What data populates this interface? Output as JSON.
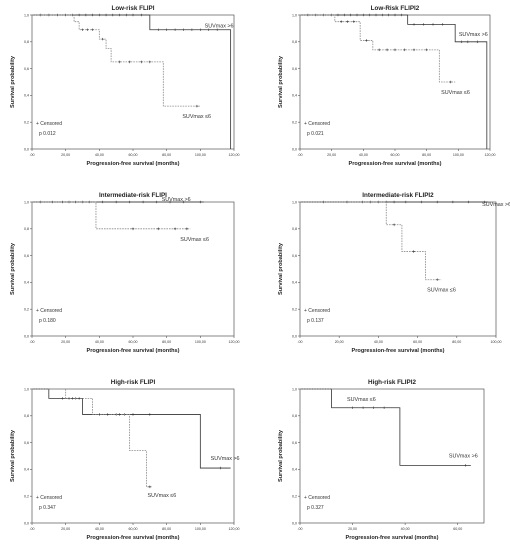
{
  "chart_data": [
    {
      "type": "line",
      "title": "Low-risk FLIPI",
      "xlabel": "Progression-free survival (months)",
      "ylabel": "Survival probability",
      "xlim": [
        0,
        120
      ],
      "ylim": [
        0,
        1
      ],
      "xticks": [
        ".00",
        "20,00",
        "40,00",
        "60,00",
        "80,00",
        "100,00",
        "120,00"
      ],
      "yticks": [
        "0,0",
        "0,2",
        "0,4",
        "0,6",
        "0,8",
        "1,0"
      ],
      "legend": "+ Censored",
      "p_value": "p 0.012",
      "series": [
        {
          "name": "SUVmax >6",
          "style": "solid",
          "steps": [
            [
              0,
              1
            ],
            [
              70,
              1
            ],
            [
              70,
              0.89
            ],
            [
              118,
              0.89
            ],
            [
              118,
              0
            ]
          ],
          "censor": [
            [
              5,
              1
            ],
            [
              10,
              1
            ],
            [
              15,
              1
            ],
            [
              20,
              1
            ],
            [
              24,
              1
            ],
            [
              28,
              1
            ],
            [
              32,
              1
            ],
            [
              36,
              1
            ],
            [
              40,
              1
            ],
            [
              44,
              1
            ],
            [
              48,
              1
            ],
            [
              52,
              1
            ],
            [
              56,
              1
            ],
            [
              60,
              1
            ],
            [
              65,
              1
            ],
            [
              75,
              0.89
            ],
            [
              80,
              0.89
            ],
            [
              85,
              0.89
            ],
            [
              90,
              0.89
            ],
            [
              95,
              0.89
            ],
            [
              100,
              0.89
            ],
            [
              105,
              0.89
            ],
            [
              110,
              0.89
            ]
          ]
        },
        {
          "name": "SUVmax ≤6",
          "style": "dashed",
          "steps": [
            [
              0,
              1
            ],
            [
              25,
              1
            ],
            [
              25,
              0.95
            ],
            [
              28,
              0.95
            ],
            [
              28,
              0.89
            ],
            [
              40,
              0.89
            ],
            [
              40,
              0.82
            ],
            [
              44,
              0.82
            ],
            [
              44,
              0.75
            ],
            [
              47,
              0.75
            ],
            [
              47,
              0.65
            ],
            [
              78,
              0.65
            ],
            [
              78,
              0.32
            ],
            [
              100,
              0.32
            ]
          ],
          "censor": [
            [
              30,
              0.89
            ],
            [
              33,
              0.89
            ],
            [
              36,
              0.89
            ],
            [
              42,
              0.82
            ],
            [
              52,
              0.65
            ],
            [
              58,
              0.65
            ],
            [
              65,
              0.65
            ],
            [
              70,
              0.65
            ],
            [
              98,
              0.32
            ]
          ]
        }
      ]
    },
    {
      "type": "line",
      "title": "Low-Risk FLIPI2",
      "xlabel": "Progression-free survival (months)",
      "ylabel": "Survival probability",
      "xlim": [
        0,
        120
      ],
      "ylim": [
        0,
        1
      ],
      "xticks": [
        ".00",
        "20,00",
        "40,00",
        "60,00",
        "80,00",
        "100,00",
        "120,00"
      ],
      "yticks": [
        "0,0",
        "0,2",
        "0,4",
        "0,6",
        "0,8",
        "1,0"
      ],
      "legend": "+ Censored",
      "p_value": "p 0.021",
      "series": [
        {
          "name": "SUVmax >6",
          "style": "solid",
          "steps": [
            [
              0,
              1
            ],
            [
              68,
              1
            ],
            [
              68,
              0.93
            ],
            [
              98,
              0.93
            ],
            [
              98,
              0.8
            ],
            [
              118,
              0.8
            ],
            [
              118,
              0
            ]
          ],
          "censor": [
            [
              5,
              1
            ],
            [
              10,
              1
            ],
            [
              15,
              1
            ],
            [
              20,
              1
            ],
            [
              24,
              1
            ],
            [
              28,
              1
            ],
            [
              32,
              1
            ],
            [
              36,
              1
            ],
            [
              40,
              1
            ],
            [
              44,
              1
            ],
            [
              48,
              1
            ],
            [
              52,
              1
            ],
            [
              56,
              1
            ],
            [
              60,
              1
            ],
            [
              64,
              1
            ],
            [
              72,
              0.93
            ],
            [
              78,
              0.93
            ],
            [
              84,
              0.93
            ],
            [
              90,
              0.93
            ],
            [
              102,
              0.8
            ],
            [
              106,
              0.8
            ],
            [
              112,
              0.8
            ]
          ]
        },
        {
          "name": "SUVmax ≤6",
          "style": "dashed",
          "steps": [
            [
              0,
              1
            ],
            [
              22,
              1
            ],
            [
              22,
              0.95
            ],
            [
              38,
              0.95
            ],
            [
              38,
              0.81
            ],
            [
              46,
              0.81
            ],
            [
              46,
              0.74
            ],
            [
              88,
              0.74
            ],
            [
              88,
              0.5
            ],
            [
              98,
              0.5
            ]
          ],
          "censor": [
            [
              26,
              0.95
            ],
            [
              30,
              0.95
            ],
            [
              34,
              0.95
            ],
            [
              42,
              0.81
            ],
            [
              50,
              0.74
            ],
            [
              55,
              0.74
            ],
            [
              60,
              0.74
            ],
            [
              66,
              0.74
            ],
            [
              72,
              0.74
            ],
            [
              80,
              0.74
            ],
            [
              95,
              0.5
            ]
          ]
        }
      ]
    },
    {
      "type": "line",
      "title": "Intermediate-risk FLIPI",
      "xlabel": "Progression-free survival (months)",
      "ylabel": "Survival probability",
      "xlim": [
        0,
        120
      ],
      "ylim": [
        0,
        1
      ],
      "xticks": [
        ".00",
        "20,00",
        "40,00",
        "60,00",
        "80,00",
        "100,00",
        "120,00"
      ],
      "yticks": [
        "0,0",
        "0,2",
        "0,4",
        "0,6",
        "0,8",
        "1,0"
      ],
      "legend": "+ Censored",
      "p_value": "p 0.180",
      "series": [
        {
          "name": "SUVmax >6",
          "style": "solid",
          "steps": [
            [
              0,
              1
            ],
            [
              102,
              1
            ]
          ],
          "censor": [
            [
              5,
              1
            ],
            [
              12,
              1
            ],
            [
              18,
              1
            ],
            [
              22,
              1
            ],
            [
              26,
              1
            ],
            [
              30,
              1
            ],
            [
              34,
              1
            ],
            [
              42,
              1
            ],
            [
              50,
              1
            ],
            [
              58,
              1
            ],
            [
              66,
              1
            ],
            [
              74,
              1
            ],
            [
              82,
              1
            ],
            [
              90,
              1
            ],
            [
              100,
              1
            ]
          ]
        },
        {
          "name": "SUVmax ≤6",
          "style": "dashed",
          "steps": [
            [
              0,
              1
            ],
            [
              38,
              1
            ],
            [
              38,
              0.8
            ],
            [
              94,
              0.8
            ]
          ],
          "censor": [
            [
              60,
              0.8
            ],
            [
              75,
              0.8
            ],
            [
              85,
              0.8
            ],
            [
              92,
              0.8
            ]
          ]
        }
      ]
    },
    {
      "type": "line",
      "title": "Intermediate-risk FLIPI2",
      "xlabel": "Progression-free survival (months)",
      "ylabel": "Survival probability",
      "xlim": [
        0,
        100
      ],
      "ylim": [
        0,
        1
      ],
      "xticks": [
        ".00",
        "20,00",
        "40,00",
        "60,00",
        "80,00",
        "100,00"
      ],
      "yticks": [
        "0,0",
        "0,2",
        "0,4",
        "0,6",
        "0,8",
        "1,0"
      ],
      "legend": "+ Censored",
      "p_value": "p 0.137",
      "series": [
        {
          "name": "SUVmax >6",
          "style": "solid",
          "steps": [
            [
              0,
              1
            ],
            [
              96,
              1
            ]
          ],
          "censor": [
            [
              12,
              1
            ],
            [
              24,
              1
            ],
            [
              32,
              1
            ],
            [
              36,
              1
            ],
            [
              40,
              1
            ],
            [
              44,
              1
            ],
            [
              48,
              1
            ],
            [
              54,
              1
            ],
            [
              62,
              1
            ],
            [
              70,
              1
            ],
            [
              78,
              1
            ],
            [
              86,
              1
            ],
            [
              94,
              1
            ]
          ]
        },
        {
          "name": "SUVmax ≤6",
          "style": "dashed",
          "steps": [
            [
              0,
              1
            ],
            [
              44,
              1
            ],
            [
              44,
              0.83
            ],
            [
              52,
              0.83
            ],
            [
              52,
              0.63
            ],
            [
              64,
              0.63
            ],
            [
              64,
              0.42
            ],
            [
              72,
              0.42
            ]
          ],
          "censor": [
            [
              48,
              0.83
            ],
            [
              58,
              0.63
            ],
            [
              70,
              0.42
            ]
          ]
        }
      ]
    },
    {
      "type": "line",
      "title": "High-risk FLIPI",
      "xlabel": "Progression-free survival (months)",
      "ylabel": "Survival probability",
      "xlim": [
        0,
        120
      ],
      "ylim": [
        0,
        1
      ],
      "xticks": [
        ".00",
        "20,00",
        "40,00",
        "60,00",
        "80,00",
        "100,00",
        "120,00"
      ],
      "yticks": [
        "0,0",
        "0,2",
        "0,4",
        "0,6",
        "0,8",
        "1,0"
      ],
      "legend": "+ Censored",
      "p_value": "p 0.347",
      "series": [
        {
          "name": "SUVmax >6",
          "style": "solid",
          "steps": [
            [
              0,
              1
            ],
            [
              10,
              1
            ],
            [
              10,
              0.93
            ],
            [
              30,
              0.93
            ],
            [
              30,
              0.81
            ],
            [
              100,
              0.81
            ],
            [
              100,
              0.41
            ],
            [
              118,
              0.41
            ]
          ],
          "censor": [
            [
              18,
              0.93
            ],
            [
              22,
              0.93
            ],
            [
              26,
              0.93
            ],
            [
              40,
              0.81
            ],
            [
              50,
              0.81
            ],
            [
              55,
              0.81
            ],
            [
              60,
              0.81
            ],
            [
              70,
              0.81
            ],
            [
              112,
              0.41
            ]
          ]
        },
        {
          "name": "SUVmax ≤6",
          "style": "dashed",
          "steps": [
            [
              0,
              1
            ],
            [
              20,
              1
            ],
            [
              20,
              0.93
            ],
            [
              36,
              0.93
            ],
            [
              36,
              0.81
            ],
            [
              58,
              0.81
            ],
            [
              58,
              0.54
            ],
            [
              68,
              0.54
            ],
            [
              68,
              0.27
            ],
            [
              71,
              0.27
            ]
          ],
          "censor": [
            [
              24,
              0.93
            ],
            [
              28,
              0.93
            ],
            [
              45,
              0.81
            ],
            [
              52,
              0.81
            ],
            [
              70,
              0.27
            ]
          ]
        }
      ]
    },
    {
      "type": "line",
      "title": "High-risk FLIPI2",
      "xlabel": "Progression-free survival (months)",
      "ylabel": "Survival probability",
      "xlim": [
        0,
        70
      ],
      "ylim": [
        0,
        1
      ],
      "xticks": [
        ".00",
        "20,00",
        "40,00",
        "60,00"
      ],
      "yticks": [
        "0,0",
        "0,2",
        "0,4",
        "0,6",
        "0,8",
        "1,0"
      ],
      "legend": "+ Censored",
      "p_value": "p 0.327",
      "series": [
        {
          "name": "SUVmax >6",
          "style": "solid",
          "steps": [
            [
              0,
              1
            ],
            [
              12,
              1
            ],
            [
              12,
              0.86
            ],
            [
              38,
              0.86
            ],
            [
              38,
              0.43
            ],
            [
              65,
              0.43
            ]
          ],
          "censor": [
            [
              20,
              0.86
            ],
            [
              24,
              0.86
            ],
            [
              28,
              0.86
            ],
            [
              32,
              0.86
            ],
            [
              63,
              0.43
            ]
          ]
        },
        {
          "name": "SUVmax ≤6",
          "style": "dashed",
          "steps": [
            [
              0,
              1
            ],
            [
              35,
              1
            ]
          ],
          "censor": []
        }
      ]
    }
  ]
}
